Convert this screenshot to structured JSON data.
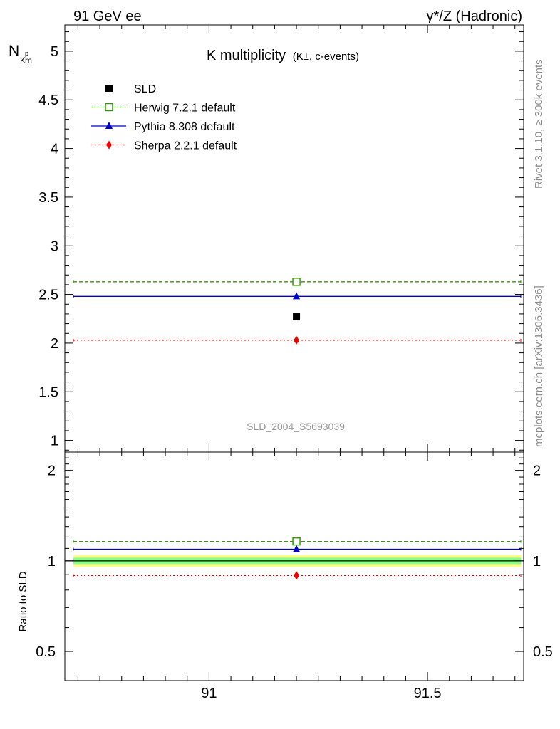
{
  "header": {
    "left": "91 GeV ee",
    "right": "γ*/Z (Hadronic)"
  },
  "side_labels": {
    "rivet": "Rivet 3.1.10, ≥ 300k events",
    "mcplots": "mcplots.cern.ch [arXiv:1306.3436]"
  },
  "watermark": "SLD_2004_S5693039",
  "colors": {
    "data": "#000000",
    "herwig": "#339900",
    "pythia": "#0000cc",
    "sherpa": "#ee0000",
    "band_inner": "#88ff88",
    "band_outer": "#ffff88"
  },
  "chart_data": [
    {
      "type": "line",
      "title_main": "K multiplicity",
      "title_sub": "(K±, c-events)",
      "ylabel_main": "N",
      "ylabel_sup": "p",
      "ylabel_sub1": "K",
      "ylabel_sub2": "m",
      "xlim": [
        90.67,
        91.72
      ],
      "ylim": [
        0.88,
        5.27
      ],
      "yticks": [
        1,
        1.5,
        2,
        2.5,
        3,
        3.5,
        4,
        4.5,
        5
      ],
      "ytick_labels": [
        "1",
        "1.5",
        "2",
        "2.5",
        "3",
        "3.5",
        "4",
        "4.5",
        "5"
      ],
      "grid": false,
      "legend_position": "top-left",
      "bin": [
        90.67,
        91.72
      ],
      "x_center": 91.2,
      "series": [
        {
          "name": "SLD",
          "key": "data",
          "y": 2.27,
          "marker": "square-filled",
          "style": "none"
        },
        {
          "name": "Herwig 7.2.1 default",
          "key": "herwig",
          "y": 2.63,
          "marker": "square-open",
          "style": "dashed"
        },
        {
          "name": "Pythia 8.308 default",
          "key": "pythia",
          "y": 2.48,
          "marker": "triangle",
          "style": "solid"
        },
        {
          "name": "Sherpa 2.2.1 default",
          "key": "sherpa",
          "y": 2.03,
          "marker": "diamond",
          "style": "dotted"
        }
      ]
    },
    {
      "type": "line",
      "ylabel": "Ratio to SLD",
      "xlim": [
        90.67,
        91.72
      ],
      "ylim": [
        0.4,
        2.3
      ],
      "yticks": [
        0.5,
        1,
        2
      ],
      "ytick_labels": [
        "0.5",
        "1",
        "2"
      ],
      "xticks": [
        91,
        91.5
      ],
      "xtick_labels": [
        "91",
        "91.5"
      ],
      "grid": false,
      "reference": 1,
      "band_inner": [
        0.975,
        1.025
      ],
      "band_outer": [
        0.955,
        1.045
      ],
      "series": [
        {
          "name": "Herwig 7.2.1 default",
          "key": "herwig",
          "y": 1.16,
          "marker": "square-open",
          "style": "dashed"
        },
        {
          "name": "Pythia 8.308 default",
          "key": "pythia",
          "y": 1.093,
          "marker": "triangle",
          "style": "solid"
        },
        {
          "name": "Sherpa 2.2.1 default",
          "key": "sherpa",
          "y": 0.894,
          "marker": "diamond",
          "style": "dotted"
        }
      ]
    }
  ]
}
